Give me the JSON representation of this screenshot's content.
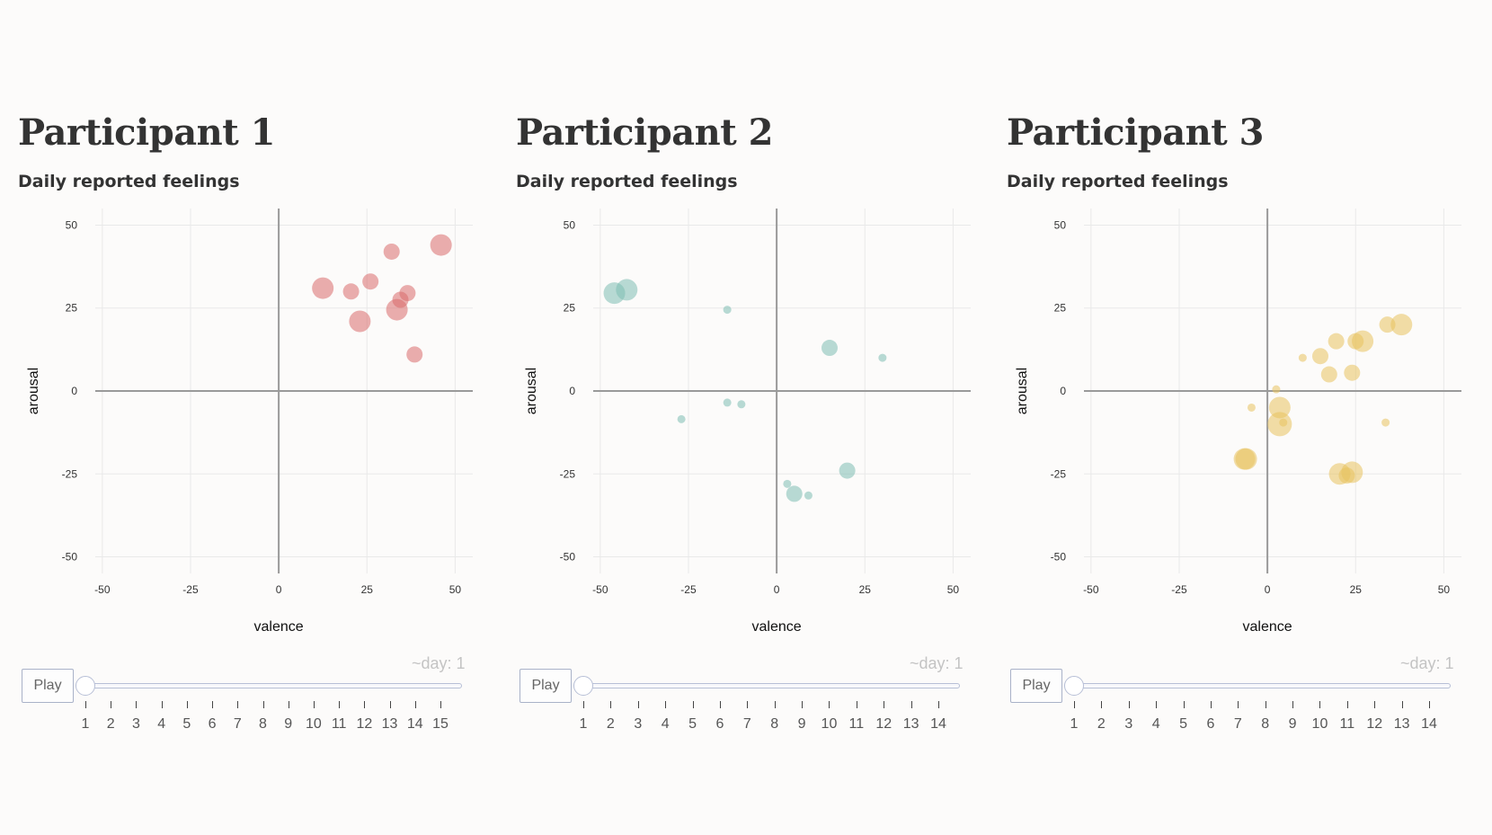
{
  "panels": [
    {
      "title": "Participant 1",
      "subtitle": "Daily reported feelings",
      "color": "#d96c6c",
      "day_label": "~day: 1",
      "play_label": "Play",
      "steps": [
        "1",
        "2",
        "3",
        "4",
        "5",
        "6",
        "7",
        "8",
        "9",
        "10",
        "11",
        "12",
        "13",
        "14",
        "15"
      ]
    },
    {
      "title": "Participant 2",
      "subtitle": "Daily reported feelings",
      "color": "#7dbdb3",
      "day_label": "~day: 1",
      "play_label": "Play",
      "steps": [
        "1",
        "2",
        "3",
        "4",
        "5",
        "6",
        "7",
        "8",
        "9",
        "10",
        "11",
        "12",
        "13",
        "14"
      ]
    },
    {
      "title": "Participant 3",
      "subtitle": "Daily reported feelings",
      "color": "#e8c35e",
      "day_label": "~day: 1",
      "play_label": "Play",
      "steps": [
        "1",
        "2",
        "3",
        "4",
        "5",
        "6",
        "7",
        "8",
        "9",
        "10",
        "11",
        "12",
        "13",
        "14"
      ]
    }
  ],
  "chart_data": [
    {
      "type": "scatter",
      "title": "Participant 1",
      "subtitle": "Daily reported feelings",
      "xlabel": "valence",
      "ylabel": "arousal",
      "xlim": [
        -52,
        55
      ],
      "ylim": [
        -55,
        55
      ],
      "xticks": [
        -50,
        -25,
        0,
        25,
        50
      ],
      "yticks": [
        -50,
        -25,
        0,
        25,
        50
      ],
      "grid": true,
      "slider_value": 1,
      "points": [
        {
          "x": 46,
          "y": 44,
          "size": 3
        },
        {
          "x": 32,
          "y": 42,
          "size": 2
        },
        {
          "x": 12.5,
          "y": 31,
          "size": 3
        },
        {
          "x": 20.5,
          "y": 30,
          "size": 2
        },
        {
          "x": 26,
          "y": 33,
          "size": 2
        },
        {
          "x": 36.5,
          "y": 29.5,
          "size": 2
        },
        {
          "x": 34.5,
          "y": 27.5,
          "size": 2
        },
        {
          "x": 33.5,
          "y": 24.5,
          "size": 3
        },
        {
          "x": 23,
          "y": 21,
          "size": 3
        },
        {
          "x": 38.5,
          "y": 11,
          "size": 2
        }
      ]
    },
    {
      "type": "scatter",
      "title": "Participant 2",
      "subtitle": "Daily reported feelings",
      "xlabel": "valence",
      "ylabel": "arousal",
      "xlim": [
        -52,
        55
      ],
      "ylim": [
        -55,
        55
      ],
      "xticks": [
        -50,
        -25,
        0,
        25,
        50
      ],
      "yticks": [
        -50,
        -25,
        0,
        25,
        50
      ],
      "grid": true,
      "slider_value": 1,
      "points": [
        {
          "x": -46,
          "y": 29.5,
          "size": 3
        },
        {
          "x": -42.5,
          "y": 30.5,
          "size": 3
        },
        {
          "x": -14,
          "y": 24.5,
          "size": 0.5
        },
        {
          "x": 15,
          "y": 13,
          "size": 2
        },
        {
          "x": 30,
          "y": 10,
          "size": 0.5
        },
        {
          "x": -27,
          "y": -8.5,
          "size": 0.5
        },
        {
          "x": -14,
          "y": -3.5,
          "size": 0.5
        },
        {
          "x": -10,
          "y": -4,
          "size": 0.5
        },
        {
          "x": 20,
          "y": -24,
          "size": 2
        },
        {
          "x": 3,
          "y": -28,
          "size": 0.5
        },
        {
          "x": 5,
          "y": -31,
          "size": 2
        },
        {
          "x": 9,
          "y": -31.5,
          "size": 0.5
        }
      ]
    },
    {
      "type": "scatter",
      "title": "Participant 3",
      "subtitle": "Daily reported feelings",
      "xlabel": "valence",
      "ylabel": "arousal",
      "xlim": [
        -52,
        55
      ],
      "ylim": [
        -55,
        55
      ],
      "xticks": [
        -50,
        -25,
        0,
        25,
        50
      ],
      "yticks": [
        -50,
        -25,
        0,
        25,
        50
      ],
      "grid": true,
      "slider_value": 1,
      "points": [
        {
          "x": 38,
          "y": 20,
          "size": 3
        },
        {
          "x": 34,
          "y": 20,
          "size": 2
        },
        {
          "x": 27,
          "y": 15,
          "size": 3
        },
        {
          "x": 25,
          "y": 15,
          "size": 2
        },
        {
          "x": 19.5,
          "y": 15,
          "size": 2
        },
        {
          "x": 15,
          "y": 10.5,
          "size": 2
        },
        {
          "x": 10,
          "y": 10,
          "size": 0.5
        },
        {
          "x": 17.5,
          "y": 5,
          "size": 2
        },
        {
          "x": 24,
          "y": 5.5,
          "size": 2
        },
        {
          "x": 2.5,
          "y": 0.5,
          "size": 0.5
        },
        {
          "x": 3.5,
          "y": -5,
          "size": 3
        },
        {
          "x": -4.5,
          "y": -5,
          "size": 0.5
        },
        {
          "x": 3.5,
          "y": -10,
          "size": 3.5
        },
        {
          "x": 4.5,
          "y": -9.5,
          "size": 0.5
        },
        {
          "x": 33.5,
          "y": -9.5,
          "size": 0.5
        },
        {
          "x": -6.5,
          "y": -20.5,
          "size": 3
        },
        {
          "x": -6,
          "y": -20.5,
          "size": 3
        },
        {
          "x": 20.5,
          "y": -25,
          "size": 3
        },
        {
          "x": 24,
          "y": -24.5,
          "size": 3
        },
        {
          "x": 22.5,
          "y": -25.5,
          "size": 2
        }
      ]
    }
  ]
}
